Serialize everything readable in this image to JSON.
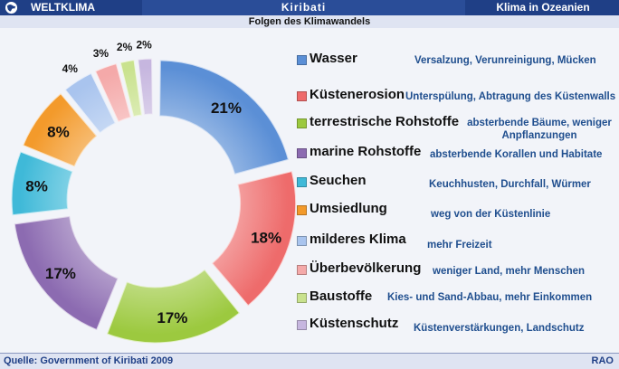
{
  "header": {
    "left_label": "WELTKLIMA",
    "center_label": "Kiribati",
    "right_label": "Klima in Ozeanien"
  },
  "subtitle": "Folgen des Klimawandels",
  "chart_data": {
    "type": "pie",
    "title": "Folgen des Klimawandels",
    "donut": true,
    "exploded": true,
    "legend_position": "right",
    "unit": "%",
    "slices": [
      {
        "label": "Wasser",
        "value": 21,
        "value_label": "21%",
        "description": "Versalzung, Verunreinigung, Mücken",
        "color": "#5b8fd6"
      },
      {
        "label": "Küstenerosion",
        "value": 18,
        "value_label": "18%",
        "description": "Unterspülung, Abtragung  des Küstenwalls",
        "color": "#ee6b6b"
      },
      {
        "label": "terrestrische Rohstoffe",
        "value": 17,
        "value_label": "17%",
        "description": "absterbende Bäume, weniger Anpflanzungen",
        "color": "#9cc93f"
      },
      {
        "label": "marine Rohstoffe",
        "value": 17,
        "value_label": "17%",
        "description": "absterbende Korallen und Habitate",
        "color": "#8c6bb1"
      },
      {
        "label": "Seuchen",
        "value": 8,
        "value_label": "8%",
        "description": "Keuchhusten, Durchfall, Würmer",
        "color": "#3fb9d8"
      },
      {
        "label": "Umsiedlung",
        "value": 8,
        "value_label": "8%",
        "description": "weg von der Küstenlinie",
        "color": "#f39a2b"
      },
      {
        "label": "milderes Klima",
        "value": 4,
        "value_label": "4%",
        "description": "mehr Freizeit",
        "color": "#a9c4ee"
      },
      {
        "label": "Überbevölkerung",
        "value": 3,
        "value_label": "3%",
        "description": "weniger Land, mehr Menschen",
        "color": "#f4a9a9"
      },
      {
        "label": "Baustoffe",
        "value": 2,
        "value_label": "2%",
        "description": "Kies- und Sand-Abbau, mehr Einkommen",
        "color": "#c9e28e"
      },
      {
        "label": "Küstenschutz",
        "value": 2,
        "value_label": "2%",
        "description": "Küstenverstärkungen, Landschutz",
        "color": "#c6b6df"
      }
    ]
  },
  "footer": {
    "source_prefix": "Quelle:",
    "source_text": "Government of Kiribati 2009",
    "brand": "RAO"
  }
}
